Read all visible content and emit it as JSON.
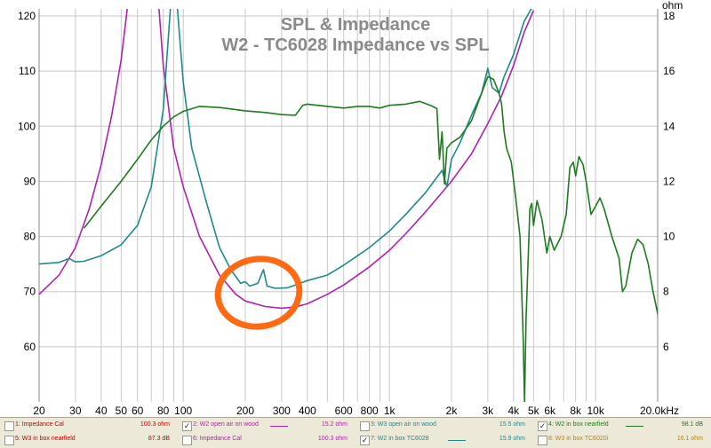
{
  "chart_data": {
    "type": "line",
    "title": "SPL & Impedance",
    "subtitle": "W2 - TC6028 Impedance vs SPL",
    "left_axis": {
      "min": 50,
      "max": 120,
      "ticks": [
        60,
        70,
        80,
        90,
        100,
        110,
        120
      ]
    },
    "right_axis": {
      "unit_label": "ohm",
      "ticks": [
        6,
        8,
        10,
        12,
        14,
        16,
        18
      ]
    },
    "x_axis": {
      "scale": "log",
      "min": 20,
      "max": 20000,
      "ticks": [
        {
          "v": 20,
          "label": "20"
        },
        {
          "v": 30,
          "label": "30"
        },
        {
          "v": 40,
          "label": "40"
        },
        {
          "v": 50,
          "label": "50"
        },
        {
          "v": 60,
          "label": "60"
        },
        {
          "v": 80,
          "label": "80"
        },
        {
          "v": 100,
          "label": "100"
        },
        {
          "v": 200,
          "label": "200"
        },
        {
          "v": 300,
          "label": "300"
        },
        {
          "v": 400,
          "label": "400"
        },
        {
          "v": 600,
          "label": "600"
        },
        {
          "v": 800,
          "label": "800"
        },
        {
          "v": 1000,
          "label": "1k"
        },
        {
          "v": 2000,
          "label": "2k"
        },
        {
          "v": 3000,
          "label": "3k"
        },
        {
          "v": 4000,
          "label": "4k"
        },
        {
          "v": 5000,
          "label": "5k"
        },
        {
          "v": 6000,
          "label": "6k"
        },
        {
          "v": 8000,
          "label": "8k"
        },
        {
          "v": 10000,
          "label": "10k"
        },
        {
          "v": 20000,
          "label": "20.0kHz"
        }
      ]
    },
    "series": [
      {
        "name": "W2 open air on wood",
        "color": "#b020b0",
        "axis": "left",
        "points": [
          [
            20,
            69.5
          ],
          [
            25,
            73
          ],
          [
            30,
            78
          ],
          [
            35,
            85
          ],
          [
            40,
            93
          ],
          [
            45,
            102
          ],
          [
            50,
            112
          ],
          [
            55,
            125
          ],
          [
            75,
            125
          ],
          [
            80,
            111
          ],
          [
            90,
            96
          ],
          [
            100,
            89
          ],
          [
            120,
            80
          ],
          [
            150,
            73
          ],
          [
            180,
            69.5
          ],
          [
            200,
            68.3
          ],
          [
            250,
            67.3
          ],
          [
            300,
            67
          ],
          [
            350,
            67.2
          ],
          [
            400,
            67.8
          ],
          [
            500,
            69.5
          ],
          [
            600,
            71.2
          ],
          [
            800,
            74.5
          ],
          [
            1000,
            77.5
          ],
          [
            1200,
            80.5
          ],
          [
            1500,
            84.5
          ],
          [
            2000,
            90
          ],
          [
            2500,
            95
          ],
          [
            3000,
            100.5
          ],
          [
            3500,
            105.5
          ],
          [
            4000,
            111
          ],
          [
            4500,
            117
          ],
          [
            5000,
            121
          ]
        ]
      },
      {
        "name": "W2 in box TC6028",
        "color": "#1e8a8a",
        "axis": "left",
        "points": [
          [
            20,
            75
          ],
          [
            25,
            75.3
          ],
          [
            28,
            76
          ],
          [
            30,
            75.4
          ],
          [
            33,
            75.5
          ],
          [
            40,
            76.5
          ],
          [
            50,
            78.5
          ],
          [
            60,
            82
          ],
          [
            70,
            89
          ],
          [
            80,
            103
          ],
          [
            88,
            125
          ],
          [
            92,
            125
          ],
          [
            100,
            108
          ],
          [
            110,
            96
          ],
          [
            130,
            86
          ],
          [
            150,
            78
          ],
          [
            170,
            74
          ],
          [
            190,
            71.5
          ],
          [
            200,
            71.8
          ],
          [
            210,
            71
          ],
          [
            230,
            71.5
          ],
          [
            245,
            74
          ],
          [
            255,
            71
          ],
          [
            280,
            70.6
          ],
          [
            320,
            70.7
          ],
          [
            350,
            71.2
          ],
          [
            400,
            72
          ],
          [
            500,
            73
          ],
          [
            600,
            74.8
          ],
          [
            700,
            76.5
          ],
          [
            800,
            78
          ],
          [
            1000,
            81
          ],
          [
            1200,
            84
          ],
          [
            1500,
            88
          ],
          [
            1800,
            92
          ],
          [
            1900,
            89
          ],
          [
            2000,
            94
          ],
          [
            2200,
            97
          ],
          [
            2500,
            102
          ],
          [
            2800,
            106
          ],
          [
            3000,
            110.5
          ],
          [
            3150,
            107
          ],
          [
            3400,
            106
          ],
          [
            3600,
            109
          ],
          [
            4000,
            113
          ],
          [
            4500,
            119
          ],
          [
            5000,
            122
          ]
        ]
      },
      {
        "name": "W2 in box nearfield",
        "color": "#1f7a1f",
        "axis": "left",
        "points": [
          [
            33,
            81.5
          ],
          [
            40,
            85.5
          ],
          [
            50,
            90
          ],
          [
            60,
            94
          ],
          [
            70,
            97.5
          ],
          [
            80,
            100
          ],
          [
            90,
            101.7
          ],
          [
            100,
            102.7
          ],
          [
            120,
            103.6
          ],
          [
            150,
            103.4
          ],
          [
            200,
            102.8
          ],
          [
            250,
            102.5
          ],
          [
            300,
            102.1
          ],
          [
            350,
            102
          ],
          [
            380,
            103.8
          ],
          [
            400,
            104
          ],
          [
            500,
            103.6
          ],
          [
            600,
            103.3
          ],
          [
            700,
            103.6
          ],
          [
            800,
            103.6
          ],
          [
            900,
            103.3
          ],
          [
            1000,
            103.8
          ],
          [
            1200,
            104
          ],
          [
            1400,
            104.5
          ],
          [
            1600,
            103.7
          ],
          [
            1700,
            103.2
          ],
          [
            1750,
            94
          ],
          [
            1800,
            99
          ],
          [
            1850,
            89.5
          ],
          [
            1900,
            96
          ],
          [
            2000,
            97
          ],
          [
            2200,
            98
          ],
          [
            2500,
            101
          ],
          [
            2800,
            106
          ],
          [
            3000,
            109
          ],
          [
            3200,
            108.5
          ],
          [
            3400,
            106
          ],
          [
            3500,
            104
          ],
          [
            3600,
            99
          ],
          [
            3700,
            96
          ],
          [
            3900,
            93.5
          ],
          [
            4100,
            87
          ],
          [
            4300,
            80
          ],
          [
            4450,
            62
          ],
          [
            4520,
            50
          ],
          [
            4600,
            65
          ],
          [
            4800,
            85
          ],
          [
            4900,
            86
          ],
          [
            5000,
            82
          ],
          [
            5200,
            86.5
          ],
          [
            5500,
            83
          ],
          [
            5800,
            77
          ],
          [
            6000,
            80
          ],
          [
            6300,
            77.5
          ],
          [
            6800,
            80
          ],
          [
            7200,
            84
          ],
          [
            7500,
            92.5
          ],
          [
            7800,
            93.5
          ],
          [
            8000,
            91
          ],
          [
            8300,
            94.5
          ],
          [
            8700,
            93
          ],
          [
            9000,
            90
          ],
          [
            9500,
            84
          ],
          [
            10000,
            85.5
          ],
          [
            10500,
            87
          ],
          [
            11000,
            85
          ],
          [
            12000,
            80
          ],
          [
            13000,
            76
          ],
          [
            13500,
            70
          ],
          [
            14000,
            71
          ],
          [
            15000,
            77
          ],
          [
            16000,
            79.5
          ],
          [
            17000,
            78.5
          ],
          [
            18000,
            75
          ],
          [
            19000,
            70
          ],
          [
            20000,
            66
          ],
          [
            20500,
            62.5
          ],
          [
            21000,
            63
          ]
        ]
      }
    ],
    "annotations": [
      {
        "type": "ellipse",
        "color": "#ff6a13"
      }
    ]
  },
  "legend": {
    "items": [
      {
        "id": 1,
        "label": "1: Impedance Cal",
        "checked": false,
        "color": "#c00000",
        "value": "100.3 ohm"
      },
      {
        "id": 2,
        "label": "2: W2 open air on wood",
        "checked": true,
        "color": "#b020b0",
        "value": "15.2 ohm"
      },
      {
        "id": 3,
        "label": "3: W3 open air on wood",
        "checked": false,
        "color": "#1e8a8a",
        "value": "15.5 ohm"
      },
      {
        "id": 4,
        "label": "4: W2 in box nearfield",
        "checked": true,
        "color": "#1f7a1f",
        "value": "98.1 dB"
      },
      {
        "id": 5,
        "label": "5: W3 in box nearfield",
        "checked": false,
        "color": "#c00000",
        "value": "87.3 dB"
      },
      {
        "id": 6,
        "label": "6: Impedance Cal",
        "checked": false,
        "color": "#b020b0",
        "value": "100.3 ohm"
      },
      {
        "id": 7,
        "label": "7: W2 in box TC6028",
        "checked": true,
        "color": "#1e8a8a",
        "value": "15.9 ohm"
      },
      {
        "id": 8,
        "label": "8: W3 in box TC6020i",
        "checked": false,
        "color": "#b8860b",
        "value": "16.1 ohm"
      }
    ]
  }
}
